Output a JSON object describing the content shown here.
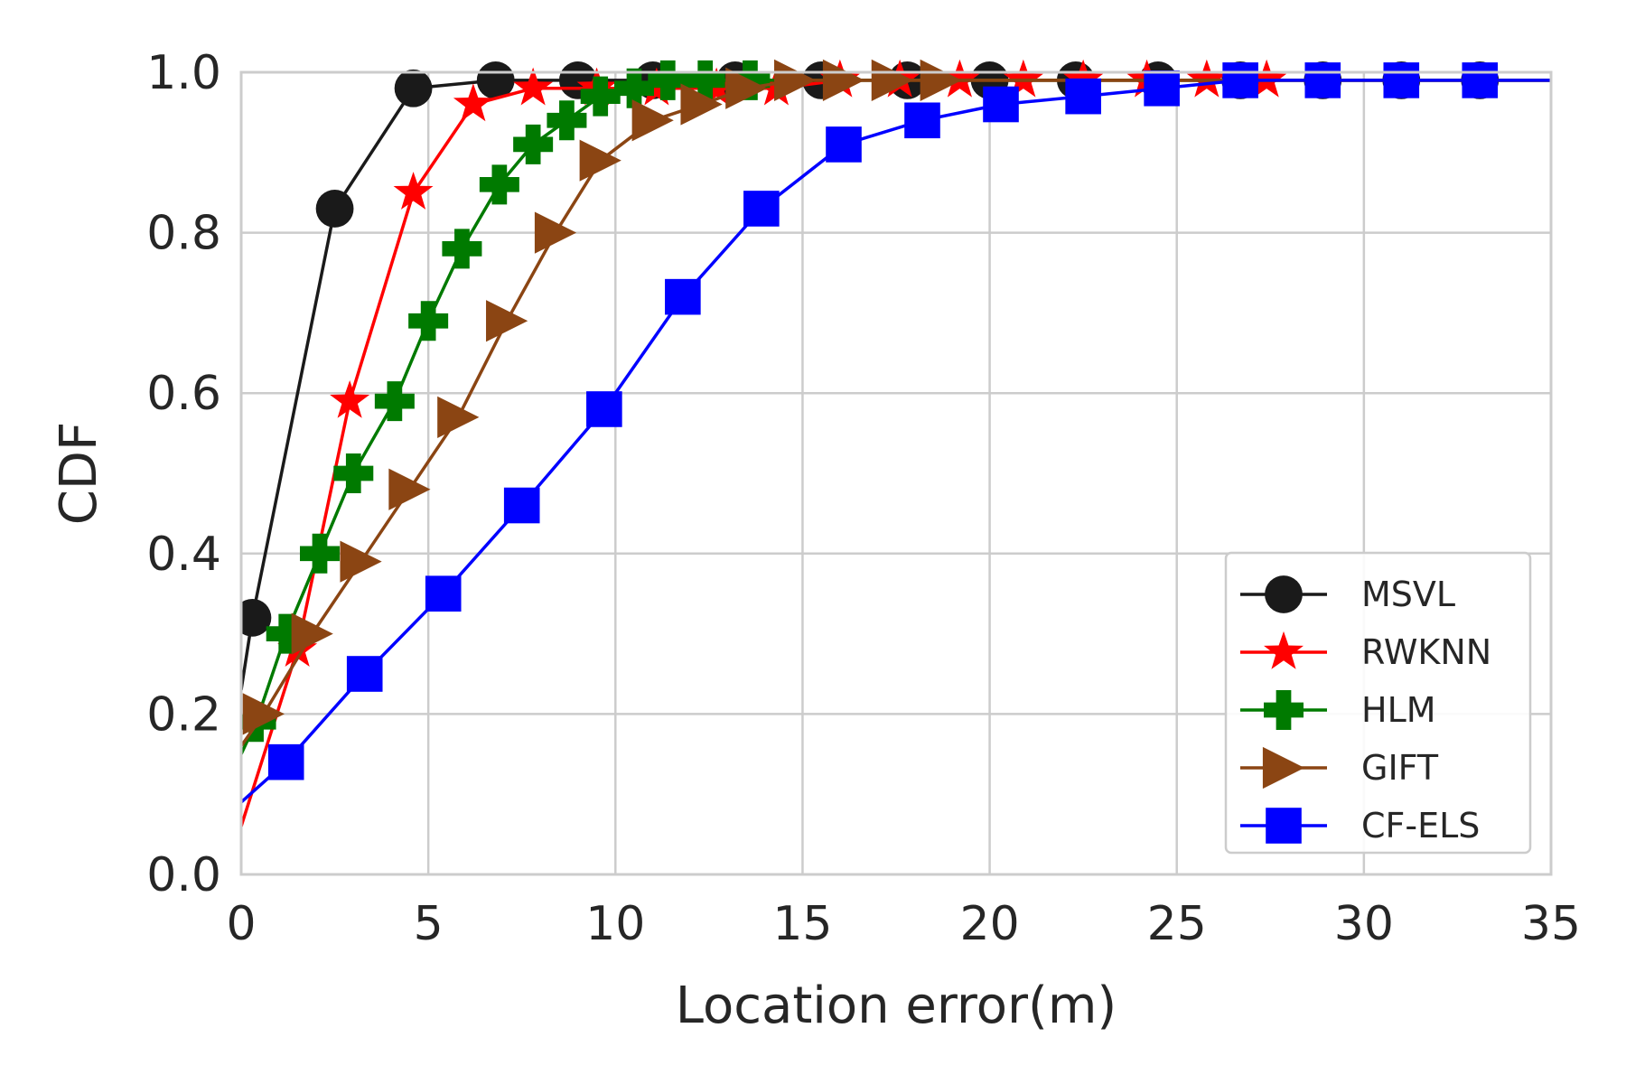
{
  "chart_data": {
    "type": "line",
    "title": "",
    "xlabel": "Location error(m)",
    "ylabel": "CDF",
    "xlim": [
      0,
      35
    ],
    "ylim": [
      0,
      1
    ],
    "xticks": [
      "0",
      "5",
      "10",
      "15",
      "20",
      "25",
      "30",
      "35"
    ],
    "yticks": [
      "0.0",
      "0.2",
      "0.4",
      "0.6",
      "0.8",
      "1.0"
    ],
    "grid": true,
    "legend_position": "lower right",
    "series": [
      {
        "name": "MSVL",
        "color": "#1a1a1a",
        "marker": "circle",
        "x": [
          0,
          0.3,
          2.5,
          4.6,
          6.8,
          9,
          11,
          13.2,
          15.5,
          17.8,
          20,
          22.3,
          24.5,
          26.7,
          28.9,
          31,
          33.1,
          35
        ],
        "y": [
          0.23,
          0.32,
          0.83,
          0.98,
          0.99,
          0.99,
          0.99,
          0.99,
          0.99,
          0.99,
          0.99,
          0.99,
          0.99,
          0.99,
          0.99,
          0.99,
          0.99,
          0.99
        ],
        "marker_x": [
          0.3,
          2.5,
          4.6,
          6.8,
          9,
          11,
          13.2,
          15.5,
          17.8,
          20,
          22.3,
          24.5,
          26.7,
          28.9,
          31,
          33.1
        ],
        "marker_y": [
          0.32,
          0.83,
          0.98,
          0.99,
          0.99,
          0.99,
          0.99,
          0.99,
          0.99,
          0.99,
          0.99,
          0.99,
          0.99,
          0.99,
          0.99,
          0.99
        ]
      },
      {
        "name": "RWKNN",
        "color": "#ff0000",
        "marker": "star",
        "x": [
          0,
          1.5,
          2.9,
          4.6,
          6.2,
          7.8,
          9.5,
          11.1,
          12.7,
          14.3,
          16,
          17.6,
          19.2,
          20.9,
          22.5,
          24.2,
          25.8,
          27.4,
          35
        ],
        "y": [
          0.06,
          0.28,
          0.59,
          0.85,
          0.96,
          0.98,
          0.98,
          0.98,
          0.98,
          0.98,
          0.99,
          0.99,
          0.99,
          0.99,
          0.99,
          0.99,
          0.99,
          0.99,
          0.99
        ],
        "marker_x": [
          1.5,
          2.9,
          4.6,
          6.2,
          7.8,
          9.5,
          11.1,
          12.7,
          14.3,
          16,
          17.6,
          19.2,
          20.9,
          22.5,
          24.2,
          25.8,
          27.4
        ],
        "marker_y": [
          0.28,
          0.59,
          0.85,
          0.96,
          0.98,
          0.98,
          0.98,
          0.98,
          0.98,
          0.99,
          0.99,
          0.99,
          0.99,
          0.99,
          0.99,
          0.99,
          0.99
        ]
      },
      {
        "name": "HLM",
        "color": "#007a00",
        "marker": "plus",
        "x": [
          0,
          0.4,
          1.2,
          2.1,
          3,
          4.1,
          5,
          5.9,
          6.9,
          7.8,
          8.7,
          9.6,
          10.5,
          11.4,
          12.4,
          13.6,
          35
        ],
        "y": [
          0.15,
          0.19,
          0.3,
          0.4,
          0.5,
          0.59,
          0.69,
          0.78,
          0.86,
          0.91,
          0.94,
          0.97,
          0.98,
          0.99,
          0.99,
          0.99,
          0.99
        ],
        "marker_x": [
          0.4,
          1.2,
          2.1,
          3,
          4.1,
          5,
          5.9,
          6.9,
          7.8,
          8.7,
          9.6,
          10.5,
          11.4,
          12.4,
          13.6
        ],
        "marker_y": [
          0.19,
          0.3,
          0.4,
          0.5,
          0.59,
          0.69,
          0.78,
          0.86,
          0.91,
          0.94,
          0.97,
          0.98,
          0.99,
          0.99,
          0.99
        ]
      },
      {
        "name": "GIFT",
        "color": "#8b4513",
        "marker": "triangle-right",
        "x": [
          0,
          0.6,
          1.9,
          3.2,
          4.5,
          5.8,
          7.1,
          8.4,
          9.6,
          11,
          12.3,
          13.5,
          14.8,
          16.1,
          17.4,
          18.7,
          35
        ],
        "y": [
          0.16,
          0.2,
          0.3,
          0.39,
          0.48,
          0.57,
          0.69,
          0.8,
          0.89,
          0.94,
          0.96,
          0.98,
          0.99,
          0.99,
          0.99,
          0.99,
          0.99
        ],
        "marker_x": [
          0.6,
          1.9,
          3.2,
          4.5,
          5.8,
          7.1,
          8.4,
          9.6,
          11,
          12.3,
          13.5,
          14.8,
          16.1,
          17.4,
          18.7
        ],
        "marker_y": [
          0.2,
          0.3,
          0.39,
          0.48,
          0.57,
          0.69,
          0.8,
          0.89,
          0.94,
          0.96,
          0.98,
          0.99,
          0.99,
          0.99,
          0.99
        ]
      },
      {
        "name": "CF-ELS",
        "color": "#0000ff",
        "marker": "square",
        "x": [
          0,
          1.2,
          3.3,
          5.4,
          7.5,
          9.7,
          11.8,
          13.9,
          16.1,
          18.2,
          20.3,
          22.5,
          24.6,
          26.7,
          28.9,
          31,
          33.1,
          35
        ],
        "y": [
          0.09,
          0.14,
          0.25,
          0.35,
          0.46,
          0.58,
          0.72,
          0.83,
          0.91,
          0.94,
          0.96,
          0.97,
          0.98,
          0.99,
          0.99,
          0.99,
          0.99,
          0.99
        ],
        "marker_x": [
          1.2,
          3.3,
          5.4,
          7.5,
          9.7,
          11.8,
          13.9,
          16.1,
          18.2,
          20.3,
          22.5,
          24.6,
          26.7,
          28.9,
          31,
          33.1
        ],
        "marker_y": [
          0.14,
          0.25,
          0.35,
          0.46,
          0.58,
          0.72,
          0.83,
          0.91,
          0.94,
          0.96,
          0.97,
          0.98,
          0.99,
          0.99,
          0.99,
          0.99
        ]
      }
    ]
  }
}
